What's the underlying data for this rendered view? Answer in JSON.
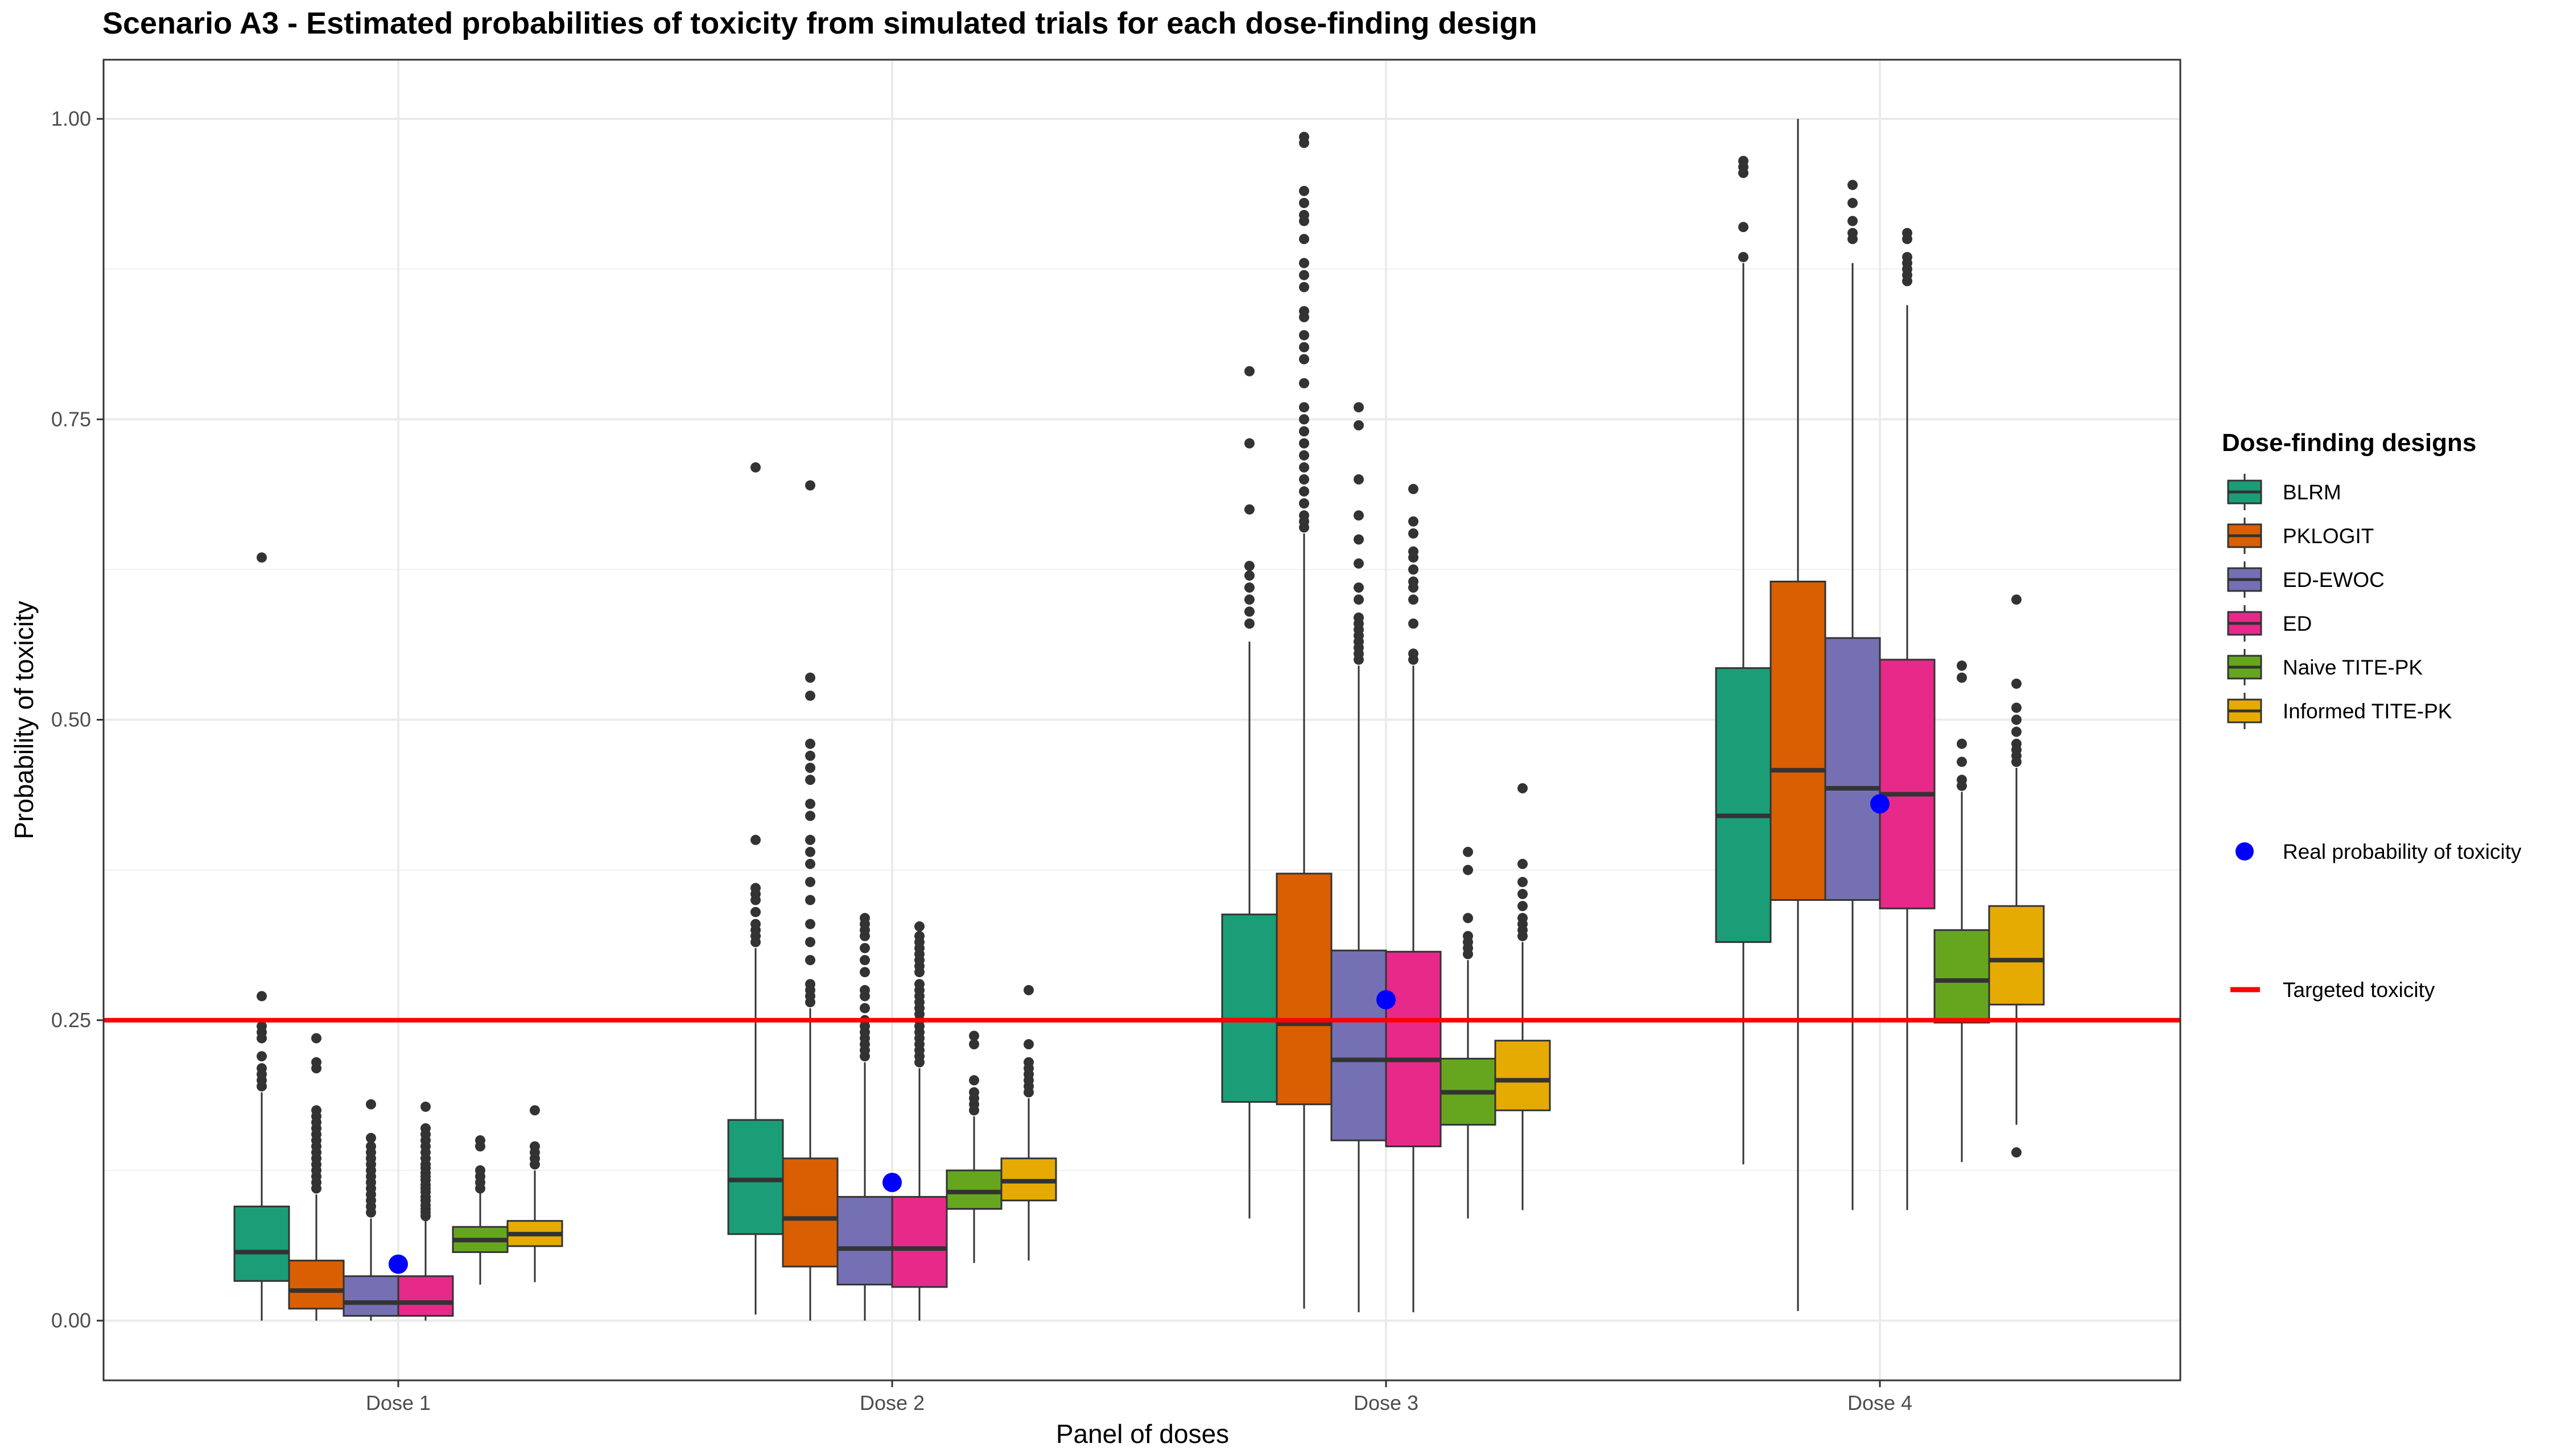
{
  "chart_data": {
    "type": "box",
    "title": "Scenario A3 - Estimated probabilities of toxicity from simulated trials for each dose-finding design",
    "xlabel": "Panel of doses",
    "ylabel": "Probability of toxicity",
    "ylim": [
      -0.05,
      1.05
    ],
    "yticks": [
      "0.00",
      "0.25",
      "0.50",
      "0.75",
      "1.00"
    ],
    "grid": true,
    "legend_position": "right",
    "categories": [
      "Dose 1",
      "Dose 2",
      "Dose 3",
      "Dose 4"
    ],
    "legend": {
      "title": "Dose-finding designs",
      "real_label": "Real probability of toxicity",
      "target_label": "Targeted toxicity"
    },
    "target_line": 0.25,
    "target_color": "#ff0000",
    "real_color": "#0000ff",
    "real_probability": [
      0.047,
      0.115,
      0.267,
      0.43
    ],
    "series": [
      {
        "name": "BLRM",
        "color": "#1b9e77",
        "boxes": [
          {
            "min": 0.0,
            "q1": 0.033,
            "median": 0.057,
            "q3": 0.095,
            "max": 0.19,
            "outliers": [
              0.195,
              0.2,
              0.205,
              0.21,
              0.22,
              0.235,
              0.24,
              0.245,
              0.27,
              0.635
            ]
          },
          {
            "min": 0.005,
            "q1": 0.072,
            "median": 0.117,
            "q3": 0.167,
            "max": 0.31,
            "outliers": [
              0.315,
              0.32,
              0.325,
              0.33,
              0.34,
              0.35,
              0.355,
              0.36,
              0.4,
              0.71
            ]
          },
          {
            "min": 0.085,
            "q1": 0.182,
            "median": 0.25,
            "q3": 0.338,
            "max": 0.565,
            "outliers": [
              0.58,
              0.59,
              0.6,
              0.61,
              0.62,
              0.628,
              0.675,
              0.73,
              0.79
            ]
          },
          {
            "min": 0.13,
            "q1": 0.315,
            "median": 0.42,
            "q3": 0.543,
            "max": 0.88,
            "outliers": [
              0.885,
              0.91,
              0.955,
              0.96,
              0.965
            ]
          }
        ]
      },
      {
        "name": "PKLOGIT",
        "color": "#d95f02",
        "boxes": [
          {
            "min": 0.0,
            "q1": 0.01,
            "median": 0.025,
            "q3": 0.05,
            "max": 0.105,
            "outliers": [
              0.11,
              0.115,
              0.12,
              0.125,
              0.13,
              0.135,
              0.14,
              0.145,
              0.15,
              0.155,
              0.16,
              0.165,
              0.17,
              0.175,
              0.21,
              0.215,
              0.235
            ]
          },
          {
            "min": 0.0,
            "q1": 0.045,
            "median": 0.085,
            "q3": 0.135,
            "max": 0.26,
            "outliers": [
              0.265,
              0.27,
              0.275,
              0.28,
              0.3,
              0.315,
              0.33,
              0.35,
              0.365,
              0.38,
              0.39,
              0.4,
              0.42,
              0.43,
              0.45,
              0.46,
              0.47,
              0.48,
              0.52,
              0.535,
              0.695
            ]
          },
          {
            "min": 0.01,
            "q1": 0.18,
            "median": 0.247,
            "q3": 0.372,
            "max": 0.655,
            "outliers": [
              0.66,
              0.665,
              0.67,
              0.68,
              0.69,
              0.7,
              0.71,
              0.72,
              0.73,
              0.74,
              0.75,
              0.76,
              0.78,
              0.8,
              0.81,
              0.82,
              0.835,
              0.84,
              0.86,
              0.87,
              0.88,
              0.9,
              0.915,
              0.92,
              0.93,
              0.94,
              0.98,
              0.985
            ]
          },
          {
            "min": 0.008,
            "q1": 0.35,
            "median": 0.458,
            "q3": 0.615,
            "max": 1.0,
            "outliers": []
          }
        ]
      },
      {
        "name": "ED-EWOC",
        "color": "#7570b3",
        "boxes": [
          {
            "min": 0.0,
            "q1": 0.004,
            "median": 0.015,
            "q3": 0.037,
            "max": 0.085,
            "outliers": [
              0.09,
              0.095,
              0.1,
              0.105,
              0.11,
              0.115,
              0.12,
              0.125,
              0.13,
              0.135,
              0.14,
              0.145,
              0.152,
              0.18
            ]
          },
          {
            "min": 0.0,
            "q1": 0.03,
            "median": 0.06,
            "q3": 0.103,
            "max": 0.215,
            "outliers": [
              0.22,
              0.225,
              0.23,
              0.235,
              0.24,
              0.245,
              0.25,
              0.26,
              0.27,
              0.275,
              0.29,
              0.3,
              0.31,
              0.32,
              0.325,
              0.33,
              0.335
            ]
          },
          {
            "min": 0.007,
            "q1": 0.15,
            "median": 0.217,
            "q3": 0.308,
            "max": 0.545,
            "outliers": [
              0.55,
              0.555,
              0.56,
              0.565,
              0.57,
              0.575,
              0.58,
              0.585,
              0.6,
              0.61,
              0.63,
              0.65,
              0.67,
              0.7,
              0.745,
              0.76
            ]
          },
          {
            "min": 0.092,
            "q1": 0.35,
            "median": 0.443,
            "q3": 0.568,
            "max": 0.88,
            "outliers": [
              0.9,
              0.905,
              0.915,
              0.93,
              0.945
            ]
          }
        ]
      },
      {
        "name": "ED",
        "color": "#e7298a",
        "boxes": [
          {
            "min": 0.0,
            "q1": 0.004,
            "median": 0.015,
            "q3": 0.037,
            "max": 0.085,
            "outliers": [
              0.087,
              0.09,
              0.093,
              0.096,
              0.1,
              0.103,
              0.107,
              0.11,
              0.113,
              0.117,
              0.12,
              0.123,
              0.127,
              0.13,
              0.135,
              0.14,
              0.145,
              0.15,
              0.155,
              0.16,
              0.178
            ]
          },
          {
            "min": 0.0,
            "q1": 0.028,
            "median": 0.06,
            "q3": 0.103,
            "max": 0.21,
            "outliers": [
              0.215,
              0.22,
              0.225,
              0.23,
              0.235,
              0.24,
              0.245,
              0.25,
              0.255,
              0.26,
              0.265,
              0.27,
              0.275,
              0.28,
              0.29,
              0.295,
              0.3,
              0.305,
              0.31,
              0.315,
              0.32,
              0.328
            ]
          },
          {
            "min": 0.007,
            "q1": 0.145,
            "median": 0.217,
            "q3": 0.307,
            "max": 0.545,
            "outliers": [
              0.55,
              0.555,
              0.58,
              0.6,
              0.61,
              0.615,
              0.625,
              0.635,
              0.64,
              0.655,
              0.665,
              0.692
            ]
          },
          {
            "min": 0.092,
            "q1": 0.343,
            "median": 0.438,
            "q3": 0.55,
            "max": 0.845,
            "outliers": [
              0.865,
              0.87,
              0.875,
              0.88,
              0.885,
              0.9,
              0.905
            ]
          }
        ]
      },
      {
        "name": "Naive TITE-PK",
        "color": "#66a61e",
        "boxes": [
          {
            "min": 0.03,
            "q1": 0.057,
            "median": 0.067,
            "q3": 0.078,
            "max": 0.108,
            "outliers": [
              0.11,
              0.115,
              0.12,
              0.125,
              0.145,
              0.15
            ]
          },
          {
            "min": 0.048,
            "q1": 0.093,
            "median": 0.107,
            "q3": 0.125,
            "max": 0.17,
            "outliers": [
              0.175,
              0.18,
              0.185,
              0.19,
              0.2,
              0.23,
              0.237
            ]
          },
          {
            "min": 0.085,
            "q1": 0.163,
            "median": 0.19,
            "q3": 0.218,
            "max": 0.3,
            "outliers": [
              0.305,
              0.31,
              0.315,
              0.32,
              0.335,
              0.375,
              0.39
            ]
          },
          {
            "min": 0.132,
            "q1": 0.248,
            "median": 0.283,
            "q3": 0.325,
            "max": 0.44,
            "outliers": [
              0.445,
              0.45,
              0.465,
              0.48,
              0.535,
              0.545
            ]
          }
        ]
      },
      {
        "name": "Informed TITE-PK",
        "color": "#e6ab02",
        "boxes": [
          {
            "min": 0.032,
            "q1": 0.062,
            "median": 0.072,
            "q3": 0.083,
            "max": 0.125,
            "outliers": [
              0.13,
              0.135,
              0.14,
              0.145,
              0.175
            ]
          },
          {
            "min": 0.05,
            "q1": 0.1,
            "median": 0.116,
            "q3": 0.135,
            "max": 0.185,
            "outliers": [
              0.19,
              0.195,
              0.2,
              0.205,
              0.21,
              0.215,
              0.23,
              0.275
            ]
          },
          {
            "min": 0.092,
            "q1": 0.175,
            "median": 0.2,
            "q3": 0.233,
            "max": 0.315,
            "outliers": [
              0.32,
              0.325,
              0.33,
              0.335,
              0.345,
              0.355,
              0.365,
              0.38,
              0.443
            ]
          },
          {
            "min": 0.163,
            "q1": 0.263,
            "median": 0.3,
            "q3": 0.345,
            "max": 0.46,
            "outliers": [
              0.465,
              0.47,
              0.475,
              0.48,
              0.49,
              0.5,
              0.51,
              0.53,
              0.6,
              0.14
            ]
          }
        ]
      }
    ]
  }
}
